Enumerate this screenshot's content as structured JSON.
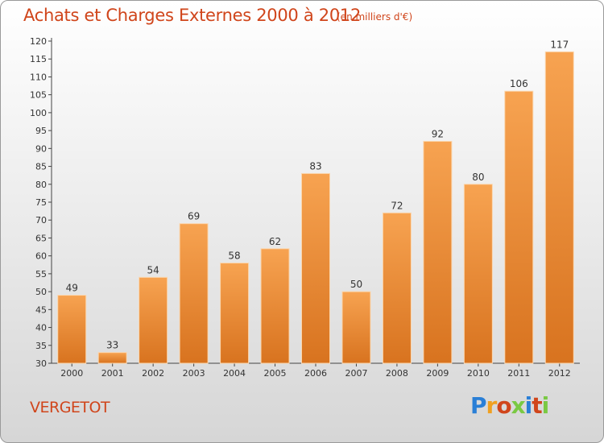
{
  "page": {
    "title": "Achats et Charges Externes 2000 à 2012",
    "subtitle": "(en milliers d'€)",
    "place": "VERGETOT"
  },
  "logo": {
    "text": "Proxiti",
    "colors": [
      "#2a7fd6",
      "#f0a020",
      "#d0451b",
      "#7ac943",
      "#2a7fd6",
      "#d0451b",
      "#7ac943"
    ]
  },
  "chart_data": {
    "type": "bar",
    "title": "Achats et Charges Externes 2000 à 2012",
    "subtitle": "(en milliers d'€)",
    "categories": [
      "2000",
      "2001",
      "2002",
      "2003",
      "2004",
      "2005",
      "2006",
      "2007",
      "2008",
      "2009",
      "2010",
      "2011",
      "2012"
    ],
    "values": [
      49,
      33,
      54,
      69,
      58,
      62,
      83,
      50,
      72,
      92,
      80,
      106,
      117
    ],
    "ylim": [
      30,
      120
    ],
    "yticks": [
      30,
      35,
      40,
      45,
      50,
      55,
      60,
      65,
      70,
      75,
      80,
      85,
      90,
      95,
      100,
      105,
      110,
      115,
      120
    ],
    "grid": false,
    "bar_color_top": "#f7a351",
    "bar_color_bottom": "#d8731f"
  }
}
